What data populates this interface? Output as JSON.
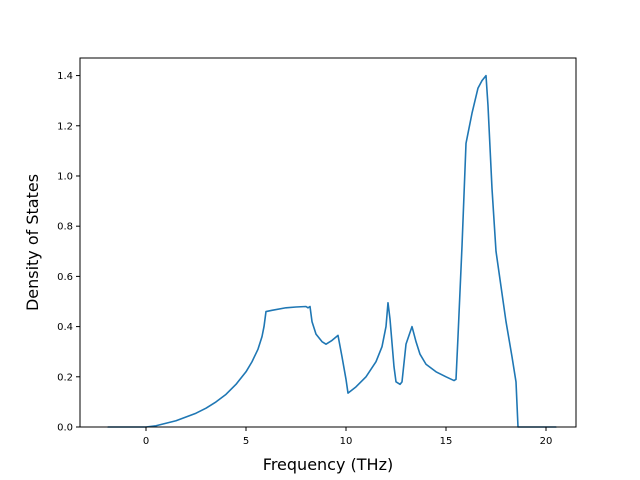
{
  "chart_data": {
    "type": "line",
    "title": "",
    "xlabel": "Frequency (THz)",
    "ylabel": "Density of States",
    "xlim": [
      -3.3,
      21.5
    ],
    "ylim": [
      0,
      1.47
    ],
    "xticks": [
      0,
      5,
      10,
      15,
      20
    ],
    "xtick_labels": [
      "0",
      "5",
      "10",
      "15",
      "20"
    ],
    "yticks": [
      0.0,
      0.2,
      0.4,
      0.6,
      0.8,
      1.0,
      1.2,
      1.4
    ],
    "ytick_labels": [
      "0.0",
      "0.2",
      "0.4",
      "0.6",
      "0.8",
      "1.0",
      "1.2",
      "1.4"
    ],
    "grid": false,
    "legend": "none",
    "series": [
      {
        "color": "#1f77b4",
        "x": [
          -1.9,
          -1.0,
          0.0,
          0.5,
          1.0,
          1.5,
          2.0,
          2.5,
          3.0,
          3.5,
          4.0,
          4.5,
          5.0,
          5.3,
          5.6,
          5.8,
          5.9,
          6.0,
          6.3,
          7.0,
          7.5,
          8.0,
          8.1,
          8.2,
          8.3,
          8.5,
          8.8,
          9.0,
          9.3,
          9.6,
          9.8,
          10.0,
          10.1,
          10.5,
          11.0,
          11.5,
          11.8,
          12.0,
          12.1,
          12.2,
          12.4,
          12.5,
          12.7,
          12.8,
          13.0,
          13.3,
          13.5,
          13.7,
          14.0,
          14.5,
          15.0,
          15.4,
          15.5,
          15.6,
          15.8,
          16.0,
          16.1,
          16.3,
          16.6,
          16.8,
          17.0,
          17.1,
          17.3,
          17.5,
          18.0,
          18.3,
          18.5,
          18.6,
          19.0,
          20.5
        ],
        "y": [
          0.0,
          0.0,
          0.0,
          0.005,
          0.015,
          0.025,
          0.04,
          0.055,
          0.075,
          0.1,
          0.13,
          0.17,
          0.22,
          0.26,
          0.31,
          0.36,
          0.4,
          0.46,
          0.465,
          0.475,
          0.478,
          0.48,
          0.475,
          0.48,
          0.42,
          0.37,
          0.34,
          0.33,
          0.345,
          0.365,
          0.28,
          0.19,
          0.135,
          0.16,
          0.2,
          0.26,
          0.32,
          0.4,
          0.495,
          0.43,
          0.24,
          0.18,
          0.17,
          0.18,
          0.33,
          0.4,
          0.34,
          0.29,
          0.25,
          0.22,
          0.2,
          0.185,
          0.19,
          0.36,
          0.72,
          1.13,
          1.17,
          1.25,
          1.35,
          1.38,
          1.4,
          1.28,
          0.95,
          0.7,
          0.42,
          0.28,
          0.18,
          0.0,
          0.0,
          0.0
        ]
      }
    ]
  }
}
